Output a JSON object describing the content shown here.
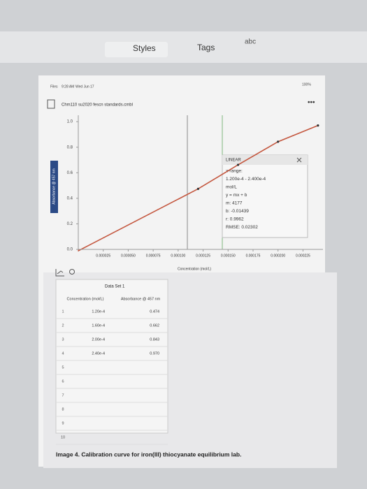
{
  "toolbar": {
    "styles": "Styles",
    "tags": "Tags",
    "abc": "abc"
  },
  "status": {
    "app": "Files",
    "time": "9:28 AM",
    "date": "Wed Jun 17",
    "battery": "100%"
  },
  "file_name": "Chm110 su2020 fescn standards.cmbl",
  "chart_data": {
    "type": "line",
    "ylabel": "Absorbance @ 457 nm",
    "xlabel": "Concentration (mol/L)",
    "x": [
      0.00012,
      0.00016,
      0.0002,
      0.00024
    ],
    "series": [
      {
        "name": "Absorbance @ 457 nm",
        "color": "#c4573f",
        "values": [
          0.474,
          0.662,
          0.843,
          0.97
        ]
      }
    ],
    "xlim": [
      0,
      0.000245
    ],
    "ylim": [
      0,
      1.05
    ],
    "xticks": [
      {
        "value": 2.5e-05,
        "label": "0.000025"
      },
      {
        "value": 5e-05,
        "label": "0.000050"
      },
      {
        "value": 7.5e-05,
        "label": "0.000075"
      },
      {
        "value": 0.0001,
        "label": "0.000100"
      },
      {
        "value": 0.000125,
        "label": "0.000125"
      },
      {
        "value": 0.00015,
        "label": "0.000150"
      },
      {
        "value": 0.000175,
        "label": "0.000175"
      },
      {
        "value": 0.0002,
        "label": "0.000200"
      },
      {
        "value": 0.000225,
        "label": "0.000225"
      }
    ],
    "yticks": [
      {
        "value": 0,
        "label": "0.0"
      },
      {
        "value": 0.2,
        "label": "0.2"
      },
      {
        "value": 0.4,
        "label": "0.4"
      },
      {
        "value": 0.6,
        "label": "0.6"
      },
      {
        "value": 0.8,
        "label": "0.8"
      },
      {
        "value": 1,
        "label": "1.0"
      }
    ]
  },
  "fit_box": {
    "title": "LINEAR",
    "lines": [
      "x-range:",
      "1.200e-4 - 2.400e-4",
      "mol/L",
      "y = mx + b",
      "m: 4177",
      "b: -0.01439",
      "r: 0.9962",
      "RMSE: 0.02302"
    ]
  },
  "table": {
    "title": "Data Set 1",
    "headers": [
      "Concentration (mol/L)",
      "Absorbance @ 457 nm"
    ],
    "row_numbers": [
      1,
      2,
      3,
      4,
      5,
      6,
      7,
      8,
      9,
      10
    ],
    "rows": [
      [
        "1.20e-4",
        "0.474"
      ],
      [
        "1.60e-4",
        "0.662"
      ],
      [
        "2.00e-4",
        "0.843"
      ],
      [
        "2.40e-4",
        "0.970"
      ]
    ]
  },
  "caption": "Image 4. Calibration curve for iron(III) thiocyanate equilibrium lab."
}
